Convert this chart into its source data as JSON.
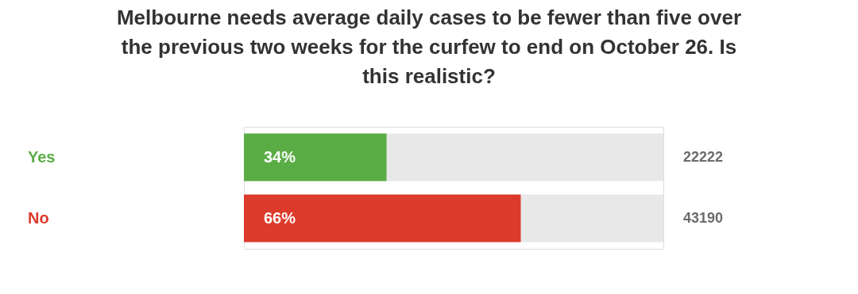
{
  "chart_data": {
    "type": "bar",
    "orientation": "horizontal",
    "title": [
      "Melbourne needs average daily cases to be fewer than five over",
      "the previous two weeks for the curfew to end on October 26. Is",
      "this realistic?"
    ],
    "categories": [
      "Yes",
      "No"
    ],
    "xlim": [
      0,
      100
    ],
    "series": [
      {
        "colors": [
          "#5aad45",
          "#dc3a2b"
        ],
        "values": [
          34,
          66
        ],
        "value_labels": [
          "34%",
          "66%"
        ]
      }
    ],
    "annotations": [
      "22222",
      "43190"
    ],
    "tick_labels": false
  }
}
